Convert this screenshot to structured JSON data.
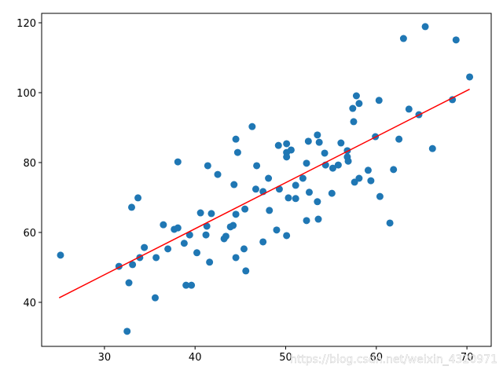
{
  "chart_data": {
    "type": "scatter",
    "xlim": [
      23.07,
      72.68
    ],
    "ylim": [
      27.4,
      122.7
    ],
    "xticks": [
      30,
      40,
      50,
      60,
      70
    ],
    "yticks": [
      40,
      60,
      80,
      100,
      120
    ],
    "grid": false,
    "watermark": "https://blog.csdn.net/weixin_4320971",
    "series": [
      {
        "type": "scatter",
        "color": "#1f77b4",
        "x": [
          25.15,
          31.6,
          32.7,
          32.5,
          33.0,
          33.1,
          33.7,
          33.9,
          34.4,
          35.6,
          35.7,
          36.5,
          37.0,
          37.7,
          38.1,
          38.1,
          38.8,
          39.0,
          39.6,
          39.4,
          40.2,
          40.6,
          41.2,
          41.3,
          41.4,
          41.6,
          41.8,
          42.5,
          43.2,
          43.4,
          43.9,
          44.2,
          44.3,
          44.5,
          44.5,
          44.5,
          44.7,
          45.4,
          45.5,
          45.6,
          46.3,
          46.8,
          46.7,
          47.5,
          47.5,
          48.1,
          48.2,
          49.0,
          49.2,
          49.3,
          50.1,
          50.1,
          50.1,
          50.1,
          50.3,
          50.6,
          51.1,
          51.1,
          51.9,
          52.3,
          52.3,
          52.5,
          52.6,
          53.5,
          53.5,
          53.6,
          53.7,
          54.3,
          54.4,
          55.1,
          55.2,
          55.8,
          56.1,
          56.8,
          56.8,
          56.9,
          57.4,
          57.5,
          57.6,
          57.8,
          58.1,
          58.1,
          59.1,
          59.4,
          59.9,
          60.3,
          60.4,
          61.5,
          61.9,
          62.5,
          63.0,
          63.6,
          64.7,
          65.4,
          66.2,
          68.4,
          68.8,
          70.3
        ],
        "y": [
          53.5,
          50.3,
          45.6,
          31.7,
          67.2,
          50.8,
          69.9,
          52.8,
          55.7,
          41.3,
          52.8,
          62.2,
          55.3,
          60.9,
          61.3,
          80.2,
          56.9,
          44.9,
          44.9,
          59.3,
          54.2,
          65.6,
          59.3,
          61.8,
          79.1,
          51.5,
          65.4,
          76.6,
          58.2,
          58.9,
          61.6,
          62.0,
          73.7,
          65.2,
          86.7,
          52.8,
          82.9,
          55.3,
          66.7,
          49.0,
          90.3,
          79.1,
          72.4,
          71.7,
          57.3,
          75.5,
          66.3,
          60.7,
          84.9,
          72.4,
          59.1,
          85.4,
          82.9,
          81.6,
          69.9,
          83.6,
          69.7,
          73.5,
          75.5,
          79.8,
          63.4,
          86.1,
          71.5,
          68.8,
          87.9,
          63.8,
          85.8,
          82.7,
          79.3,
          71.2,
          78.4,
          79.3,
          85.6,
          81.6,
          83.4,
          80.4,
          95.5,
          91.7,
          74.4,
          99.1,
          75.5,
          96.9,
          77.8,
          74.8,
          87.4,
          97.8,
          70.3,
          62.7,
          78.0,
          86.7,
          115.5,
          95.3,
          93.7,
          118.9,
          84.0,
          98.0,
          115.1,
          104.5
        ]
      },
      {
        "type": "line",
        "color": "#ff0000",
        "x": [
          25.0,
          70.3
        ],
        "y": [
          41.3,
          101.0
        ]
      }
    ]
  }
}
